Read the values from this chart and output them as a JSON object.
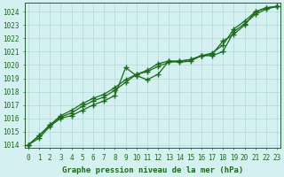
{
  "xlabel": "Graphe pression niveau de la mer (hPa)",
  "ylim": [
    1013.8,
    1024.7
  ],
  "xlim": [
    -0.3,
    23.3
  ],
  "yticks": [
    1014,
    1015,
    1016,
    1017,
    1018,
    1019,
    1020,
    1021,
    1022,
    1023,
    1024
  ],
  "xticks": [
    0,
    1,
    2,
    3,
    4,
    5,
    6,
    7,
    8,
    9,
    10,
    11,
    12,
    13,
    14,
    15,
    16,
    17,
    18,
    19,
    20,
    21,
    22,
    23
  ],
  "bg_color": "#d4f0f0",
  "grid_color": "#b0d8d8",
  "line_color": "#1a6b1a",
  "line1_x": [
    0,
    1,
    2,
    3,
    4,
    5,
    6,
    7,
    8,
    9,
    10,
    11,
    12,
    13,
    14,
    15,
    16,
    17,
    18,
    19,
    20,
    21,
    22,
    23
  ],
  "line1_y": [
    1014.0,
    1014.5,
    1015.4,
    1016.0,
    1016.2,
    1016.6,
    1017.0,
    1017.3,
    1017.7,
    1019.8,
    1019.2,
    1018.9,
    1019.3,
    1020.3,
    1020.2,
    1020.3,
    1020.7,
    1020.7,
    1021.0,
    1022.5,
    1023.1,
    1023.8,
    1024.2,
    1024.4
  ],
  "line2_x": [
    0,
    1,
    2,
    3,
    4,
    5,
    6,
    7,
    8,
    9,
    10,
    11,
    12,
    13,
    14,
    15,
    16,
    17,
    18,
    19,
    20,
    21,
    22,
    23
  ],
  "line2_y": [
    1014.0,
    1014.7,
    1015.5,
    1016.1,
    1016.4,
    1016.9,
    1017.3,
    1017.6,
    1018.1,
    1018.7,
    1019.3,
    1019.5,
    1019.9,
    1020.2,
    1020.3,
    1020.4,
    1020.7,
    1020.9,
    1021.5,
    1022.7,
    1023.3,
    1024.0,
    1024.3,
    1024.4
  ],
  "line3_x": [
    0,
    1,
    2,
    3,
    4,
    5,
    6,
    7,
    8,
    9,
    10,
    11,
    12,
    13,
    14,
    15,
    16,
    17,
    18,
    19,
    20,
    21,
    22,
    23
  ],
  "line3_y": [
    1014.0,
    1014.7,
    1015.5,
    1016.2,
    1016.6,
    1017.1,
    1017.5,
    1017.8,
    1018.3,
    1018.9,
    1019.3,
    1019.6,
    1020.1,
    1020.3,
    1020.3,
    1020.4,
    1020.7,
    1020.8,
    1021.8,
    1022.3,
    1023.0,
    1024.0,
    1024.3,
    1024.4
  ],
  "marker": "+",
  "markersize": 4,
  "linewidth": 0.9,
  "tick_fontsize": 5.5,
  "xlabel_fontsize": 6.5
}
